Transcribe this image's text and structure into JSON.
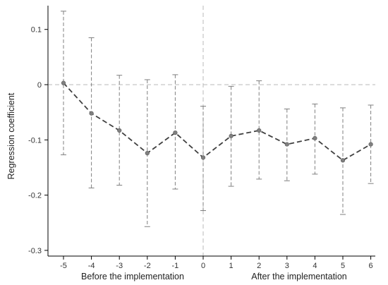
{
  "chart_data": {
    "type": "line",
    "title": "",
    "ylabel": "Regression coefficient",
    "xlabel_left": "Before the implementation",
    "xlabel_right": "After the implementation",
    "x": [
      -5,
      -4,
      -3,
      -2,
      -1,
      0,
      1,
      2,
      3,
      4,
      5,
      6
    ],
    "x_tick_labels": [
      "-5",
      "-4",
      "-3",
      "-2",
      "-1",
      "0",
      "1",
      "2",
      "3",
      "4",
      "5",
      "6"
    ],
    "y_ticks": [
      0.1,
      0,
      -0.1,
      -0.2,
      -0.3
    ],
    "y_tick_labels": [
      "0.1",
      "0",
      "-0.1",
      "-0.2",
      "-0.3"
    ],
    "ylim": [
      -0.32,
      0.145
    ],
    "series": [
      {
        "values": [
          0.003,
          -0.052,
          -0.083,
          -0.124,
          -0.087,
          -0.132,
          -0.093,
          -0.083,
          -0.108,
          -0.097,
          -0.137,
          -0.108
        ],
        "ci_upper": [
          0.133,
          0.085,
          0.017,
          0.009,
          0.018,
          -0.039,
          -0.003,
          0.007,
          -0.044,
          -0.035,
          -0.042,
          -0.037
        ],
        "ci_lower": [
          -0.127,
          -0.187,
          -0.182,
          -0.257,
          -0.189,
          -0.228,
          -0.184,
          -0.171,
          -0.174,
          -0.162,
          -0.235,
          -0.179
        ]
      }
    ],
    "reference_lines": {
      "y": 0,
      "x": 0
    },
    "grid": false,
    "colors": {
      "line": "#404040",
      "marker": "#808080",
      "error_bar": "#7f7f7f",
      "reference": "#b8b8b8",
      "axis": "#000000"
    }
  }
}
